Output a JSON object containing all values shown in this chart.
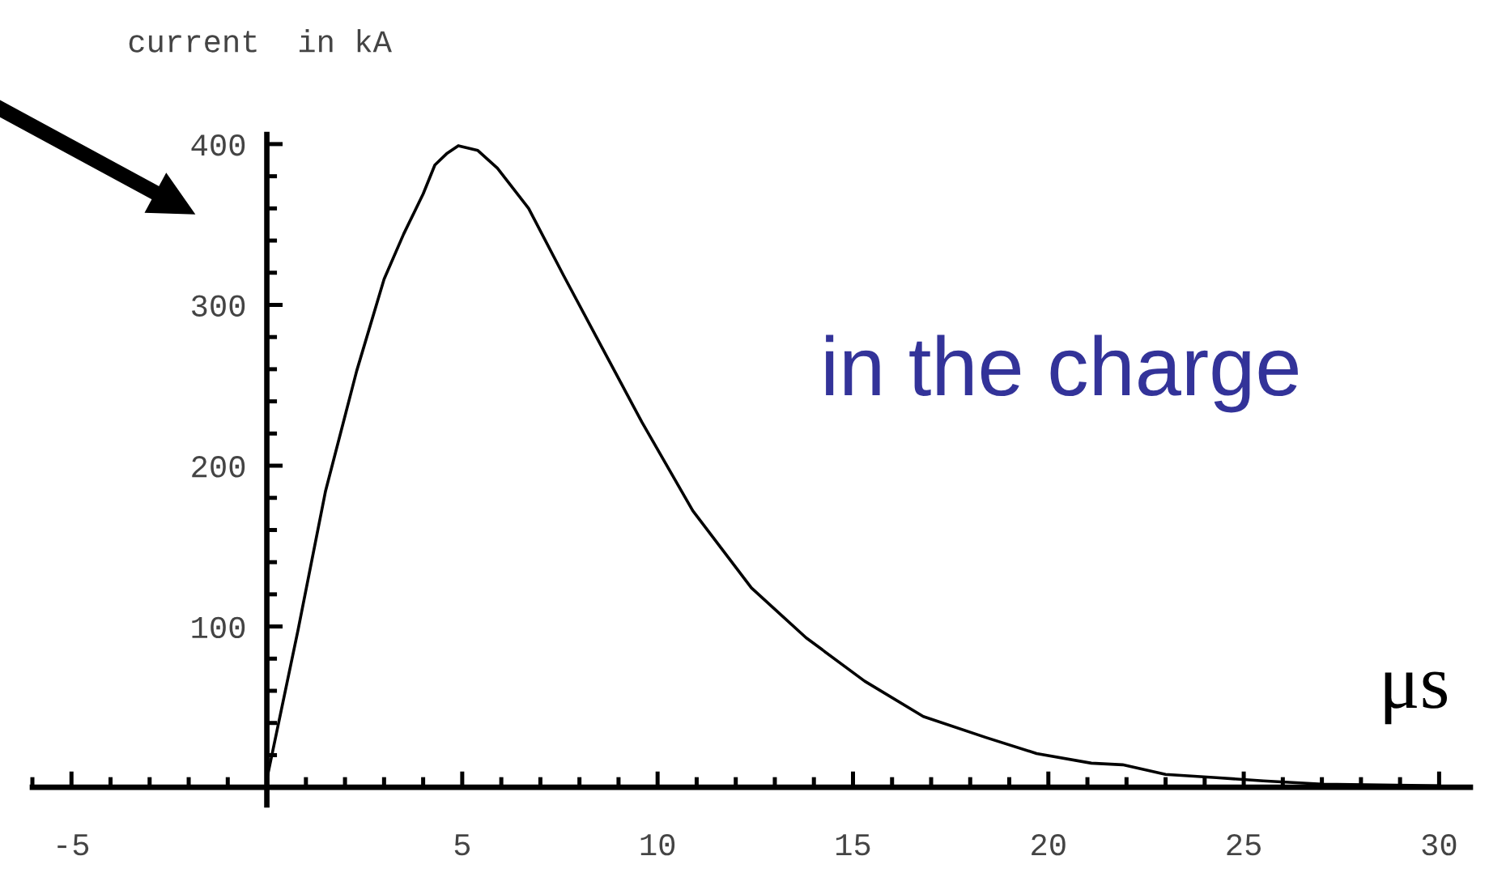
{
  "chart_data": {
    "type": "line",
    "ylabel": "current  in kA",
    "xlabel": "μs",
    "annotations": [
      "in the charge"
    ],
    "x": [
      0,
      0.8,
      1.5,
      2.3,
      3.0,
      3.5,
      4.0,
      4.3,
      4.6,
      4.9,
      5.4,
      5.9,
      6.7,
      7.6,
      8.5,
      9.6,
      10.9,
      12.4,
      13.8,
      15.3,
      16.8,
      18.4,
      19.7,
      21.1,
      21.9,
      23.0,
      24.3,
      25.5,
      27.0,
      30.0
    ],
    "series": [
      {
        "color": "#000000",
        "values": [
          5,
          98,
          184,
          259,
          316,
          344,
          369,
          387,
          394,
          399,
          396,
          385,
          360,
          318,
          277,
          227,
          172,
          124,
          93,
          66,
          44,
          31,
          21,
          15,
          14,
          8,
          6,
          4,
          2,
          1
        ]
      }
    ],
    "xlim": [
      -6,
      30.8
    ],
    "ylim": [
      -11,
      406
    ],
    "xticks": [
      -5,
      5,
      10,
      15,
      20,
      25,
      30
    ],
    "yticks": [
      100,
      200,
      300,
      400
    ],
    "marker": "none",
    "line_style": "solid"
  }
}
